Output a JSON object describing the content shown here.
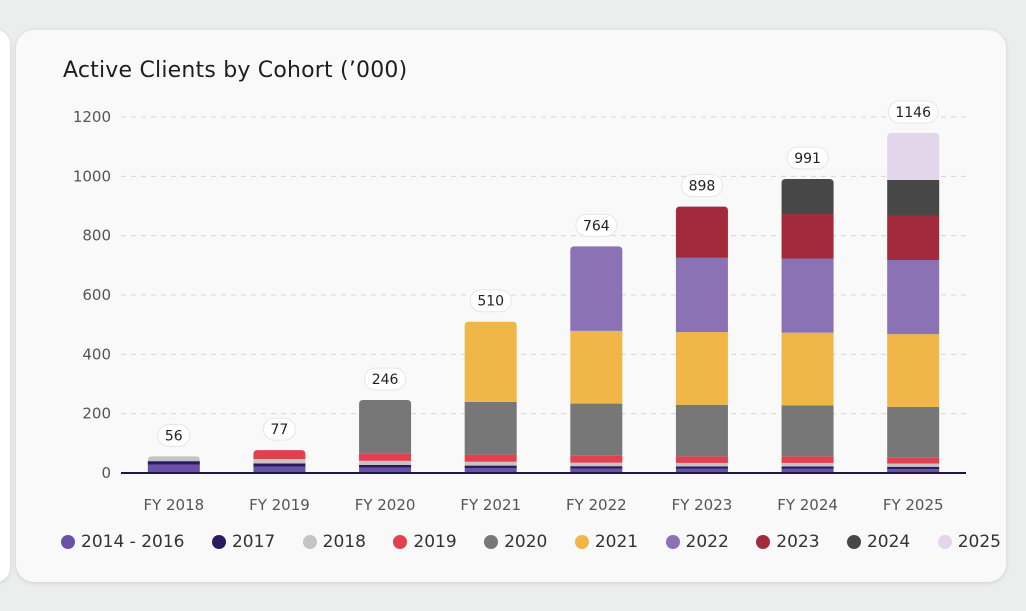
{
  "chart_data": {
    "type": "bar",
    "stacked": true,
    "title": "Active Clients by Cohort (’000)",
    "xlabel": "",
    "ylabel": "",
    "ylim": [
      0,
      1200
    ],
    "yticks": [
      0,
      200,
      400,
      600,
      800,
      1000,
      1200
    ],
    "grid": true,
    "legend_position": "bottom",
    "categories": [
      "FY 2018",
      "FY 2019",
      "FY 2020",
      "FY 2021",
      "FY 2022",
      "FY 2023",
      "FY 2024",
      "FY 2025"
    ],
    "totals": [
      56,
      77,
      246,
      510,
      764,
      898,
      991,
      1146
    ],
    "series": [
      {
        "name": "2014 - 2016",
        "color": "#6b4fa8",
        "values": [
          28,
          22,
          18,
          16,
          15,
          14,
          14,
          13
        ]
      },
      {
        "name": "2017",
        "color": "#2b1a5e",
        "values": [
          12,
          10,
          9,
          9,
          8,
          8,
          8,
          8
        ]
      },
      {
        "name": "2018",
        "color": "#c4c4c4",
        "values": [
          16,
          15,
          14,
          13,
          12,
          12,
          12,
          11
        ]
      },
      {
        "name": "2019",
        "color": "#e0404f",
        "values": [
          0,
          30,
          25,
          24,
          23,
          22,
          22,
          21
        ]
      },
      {
        "name": "2020",
        "color": "#777777",
        "values": [
          0,
          0,
          180,
          178,
          176,
          174,
          172,
          170
        ]
      },
      {
        "name": "2021",
        "color": "#f0b748",
        "values": [
          0,
          0,
          0,
          270,
          245,
          245,
          245,
          245
        ]
      },
      {
        "name": "2022",
        "color": "#8b72b5",
        "values": [
          0,
          0,
          0,
          0,
          285,
          250,
          250,
          250
        ]
      },
      {
        "name": "2023",
        "color": "#a22a3a",
        "values": [
          0,
          0,
          0,
          0,
          0,
          173,
          150,
          150
        ]
      },
      {
        "name": "2024",
        "color": "#474747",
        "values": [
          0,
          0,
          0,
          0,
          0,
          0,
          118,
          120
        ]
      },
      {
        "name": "2025",
        "color": "#e3d6ea",
        "values": [
          0,
          0,
          0,
          0,
          0,
          0,
          0,
          158
        ]
      }
    ]
  }
}
